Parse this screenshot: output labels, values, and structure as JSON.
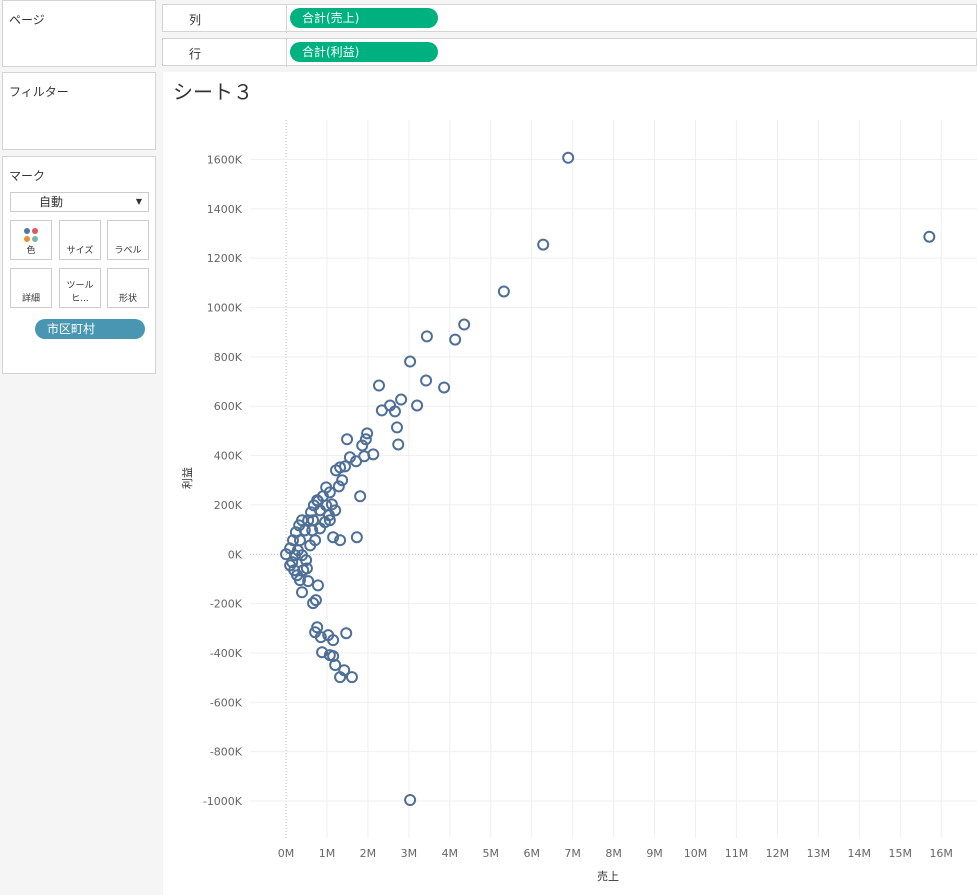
{
  "ui": {
    "pages_label": "ページ",
    "filters_label": "フィルター",
    "marks": {
      "title": "マーク",
      "mark_type": "自動",
      "buttons": [
        "色",
        "サイズ",
        "ラベル",
        "詳細",
        "ツールヒ...",
        "形状"
      ],
      "detail_field": "市区町村"
    },
    "shelves": {
      "columns_label": "列",
      "columns_pill": "合計(売上)",
      "rows_label": "行",
      "rows_pill": "合計(利益)"
    }
  },
  "chart_data": {
    "type": "scatter",
    "title": "シート３",
    "x_label": "売上",
    "y_label": "利益",
    "color": "#4e6f98",
    "grid": true,
    "xlim": [
      -880000,
      16630000
    ],
    "ylim": [
      -1150000,
      1760000
    ],
    "xticks": [
      {
        "value": 0,
        "label": "0M"
      },
      {
        "value": 1000000,
        "label": "1M"
      },
      {
        "value": 2000000,
        "label": "2M"
      },
      {
        "value": 3000000,
        "label": "3M"
      },
      {
        "value": 4000000,
        "label": "4M"
      },
      {
        "value": 5000000,
        "label": "5M"
      },
      {
        "value": 6000000,
        "label": "6M"
      },
      {
        "value": 7000000,
        "label": "7M"
      },
      {
        "value": 8000000,
        "label": "8M"
      },
      {
        "value": 9000000,
        "label": "9M"
      },
      {
        "value": 10000000,
        "label": "10M"
      },
      {
        "value": 11000000,
        "label": "11M"
      },
      {
        "value": 12000000,
        "label": "12M"
      },
      {
        "value": 13000000,
        "label": "13M"
      },
      {
        "value": 14000000,
        "label": "14M"
      },
      {
        "value": 15000000,
        "label": "15M"
      },
      {
        "value": 16000000,
        "label": "16M"
      }
    ],
    "yticks": [
      {
        "value": 1600000,
        "label": "1600K"
      },
      {
        "value": 1400000,
        "label": "1400K"
      },
      {
        "value": 1200000,
        "label": "1200K"
      },
      {
        "value": 1000000,
        "label": "1000K"
      },
      {
        "value": 800000,
        "label": "800K"
      },
      {
        "value": 600000,
        "label": "600K"
      },
      {
        "value": 400000,
        "label": "400K"
      },
      {
        "value": 200000,
        "label": "200K"
      },
      {
        "value": 0,
        "label": "0K"
      },
      {
        "value": -200000,
        "label": "-200K"
      },
      {
        "value": -400000,
        "label": "-400K"
      },
      {
        "value": -600000,
        "label": "-600K"
      },
      {
        "value": -800000,
        "label": "-800K"
      },
      {
        "value": -1000000,
        "label": "-1000K"
      }
    ],
    "x": [
      6890000,
      15710000,
      6280000,
      5320000,
      4350000,
      3440000,
      4130000,
      3030000,
      3420000,
      2270000,
      3860000,
      2810000,
      2540000,
      3200000,
      2340000,
      2660000,
      2710000,
      1490000,
      1980000,
      1950000,
      2740000,
      1860000,
      2130000,
      1910000,
      1560000,
      1710000,
      1440000,
      1320000,
      1220000,
      1370000,
      1290000,
      980000,
      1070000,
      1810000,
      780000,
      1120000,
      1730000,
      1320000,
      1150000,
      540000,
      780000,
      390000,
      660000,
      730000,
      760000,
      710000,
      1470000,
      1030000,
      1150000,
      850000,
      880000,
      1070000,
      1150000,
      1200000,
      1420000,
      1320000,
      1610000,
      3030000,
      0,
      100000,
      170000,
      240000,
      320000,
      390000,
      460000,
      540000,
      610000,
      680000,
      760000,
      830000,
      900000,
      980000,
      1050000,
      640000,
      340000,
      220000,
      150000,
      200000,
      270000,
      340000,
      420000,
      490000,
      590000,
      710000,
      830000,
      950000,
      1070000,
      1200000,
      100000,
      290000,
      390000,
      510000,
      660000
    ],
    "values": [
      1607000,
      1287000,
      1255000,
      1065000,
      931000,
      883000,
      870000,
      781000,
      704000,
      684000,
      676000,
      627000,
      603000,
      603000,
      583000,
      579000,
      514000,
      466000,
      490000,
      466000,
      445000,
      441000,
      405000,
      397000,
      393000,
      377000,
      356000,
      352000,
      340000,
      300000,
      275000,
      271000,
      251000,
      235000,
      215000,
      202000,
      69000,
      57000,
      69000,
      -109000,
      -126000,
      -154000,
      -198000,
      -186000,
      -296000,
      -316000,
      -320000,
      -328000,
      -348000,
      -336000,
      -397000,
      -409000,
      -413000,
      -449000,
      -470000,
      -498000,
      -498000,
      -996000,
      0,
      24000,
      57000,
      89000,
      117000,
      138000,
      97000,
      138000,
      170000,
      198000,
      219000,
      178000,
      235000,
      198000,
      158000,
      97000,
      57000,
      -4000,
      -32000,
      -65000,
      -85000,
      -105000,
      -65000,
      -24000,
      36000,
      57000,
      105000,
      130000,
      138000,
      178000,
      -45000,
      16000,
      -4000,
      -57000,
      138000
    ]
  }
}
